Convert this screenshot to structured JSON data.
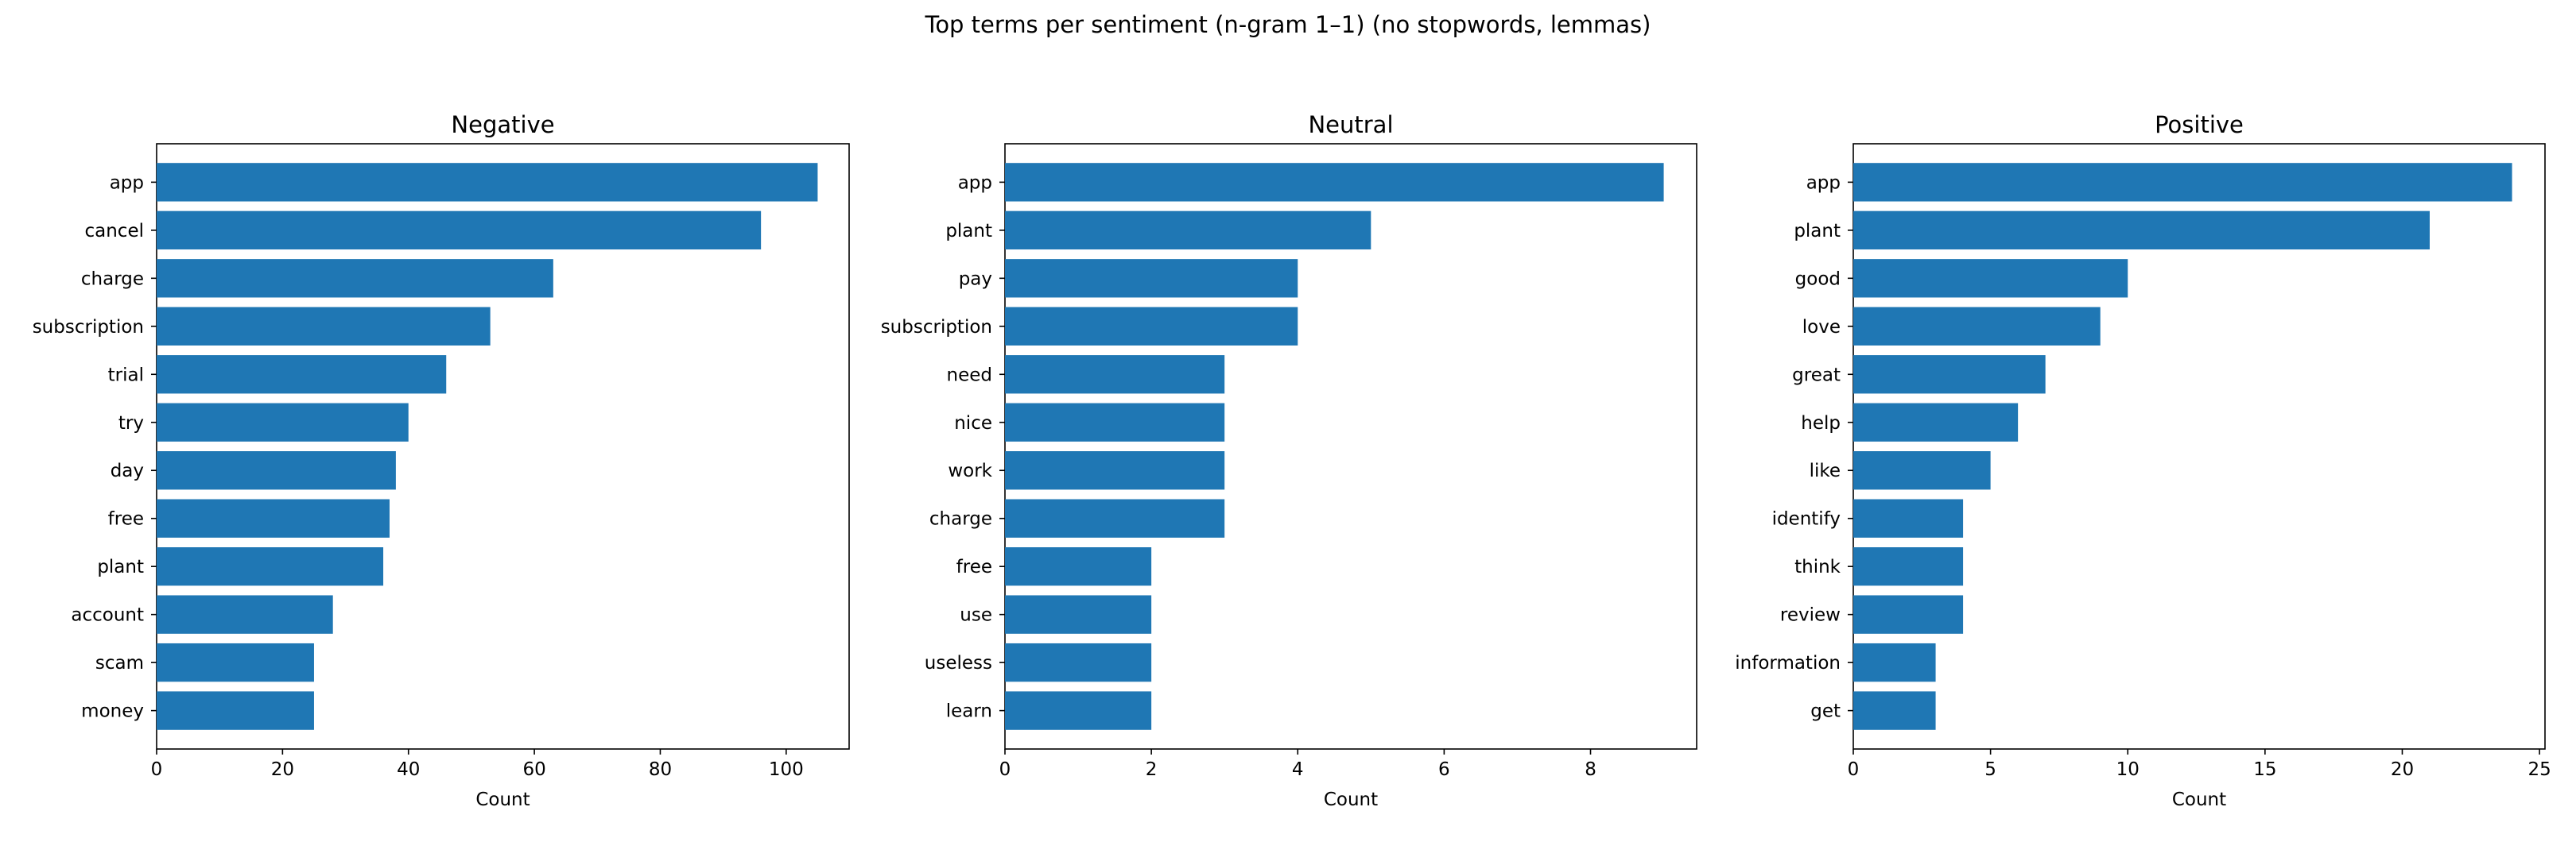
{
  "figure": {
    "suptitle": "Top terms per sentiment (n-gram 1–1) (no stopwords, lemmas)",
    "bar_color": "#1f77b4"
  },
  "chart_data": [
    {
      "type": "bar",
      "orientation": "horizontal",
      "title": "Negative",
      "xlabel": "Count",
      "ylabel": "",
      "xlim": [
        0,
        110
      ],
      "xticks": [
        0,
        20,
        40,
        60,
        80,
        100
      ],
      "categories": [
        "app",
        "cancel",
        "charge",
        "subscription",
        "trial",
        "try",
        "day",
        "free",
        "plant",
        "account",
        "scam",
        "money"
      ],
      "values": [
        105,
        96,
        63,
        53,
        46,
        40,
        38,
        37,
        36,
        28,
        25,
        25
      ]
    },
    {
      "type": "bar",
      "orientation": "horizontal",
      "title": "Neutral",
      "xlabel": "Count",
      "ylabel": "",
      "xlim": [
        0,
        9.45
      ],
      "xticks": [
        0,
        2,
        4,
        6,
        8
      ],
      "categories": [
        "app",
        "plant",
        "pay",
        "subscription",
        "need",
        "nice",
        "work",
        "charge",
        "free",
        "use",
        "useless",
        "learn"
      ],
      "values": [
        9,
        5,
        4,
        4,
        3,
        3,
        3,
        3,
        2,
        2,
        2,
        2
      ]
    },
    {
      "type": "bar",
      "orientation": "horizontal",
      "title": "Positive",
      "xlabel": "Count",
      "ylabel": "",
      "xlim": [
        0,
        25.2
      ],
      "xticks": [
        0,
        5,
        10,
        15,
        20,
        25
      ],
      "categories": [
        "app",
        "plant",
        "good",
        "love",
        "great",
        "help",
        "like",
        "identify",
        "think",
        "review",
        "information",
        "get"
      ],
      "values": [
        24,
        21,
        10,
        9,
        7,
        6,
        5,
        4,
        4,
        4,
        3,
        3
      ]
    }
  ]
}
